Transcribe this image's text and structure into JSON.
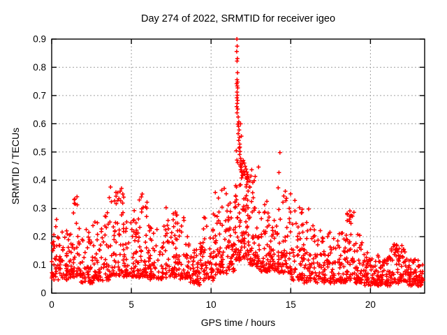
{
  "window": {
    "background": "#ffffff"
  },
  "chart_data": {
    "type": "scatter",
    "title": "Day 274 of 2022, SRMTID for receiver igeo",
    "xlabel": "GPS time / hours",
    "ylabel": "SRMTID / TECUs",
    "xlim": [
      0,
      23.4
    ],
    "ylim": [
      0,
      0.9
    ],
    "xtick_values": [
      0,
      5,
      10,
      15,
      20
    ],
    "xtick_labels": [
      "0",
      "5",
      "10",
      "15",
      "20"
    ],
    "ytick_values": [
      0,
      0.1,
      0.2,
      0.3,
      0.4,
      0.5,
      0.6,
      0.7,
      0.8,
      0.9
    ],
    "ytick_labels": [
      "0",
      "0.1",
      "0.2",
      "0.3",
      "0.4",
      "0.5",
      "0.6",
      "0.7",
      "0.8",
      "0.9"
    ],
    "grid": true,
    "grid_color": "#a0a0a0",
    "border_color": "#000000",
    "marker": "+",
    "marker_color": "#ff0000",
    "series_name": "SRMTID",
    "notable_points": [
      [
        11.62,
        0.9
      ],
      [
        11.64,
        0.875
      ],
      [
        11.61,
        0.856
      ],
      [
        11.65,
        0.831
      ],
      [
        11.63,
        0.822
      ],
      [
        11.66,
        0.781
      ],
      [
        11.63,
        0.756
      ],
      [
        11.66,
        0.748
      ],
      [
        11.61,
        0.742
      ],
      [
        11.64,
        0.734
      ],
      [
        11.67,
        0.727
      ],
      [
        11.63,
        0.712
      ],
      [
        11.65,
        0.701
      ],
      [
        11.62,
        0.692
      ],
      [
        11.66,
        0.683
      ],
      [
        11.64,
        0.672
      ],
      [
        11.61,
        0.661
      ],
      [
        11.67,
        0.652
      ],
      [
        11.63,
        0.639
      ],
      [
        11.7,
        0.624
      ],
      [
        11.74,
        0.607
      ],
      [
        11.68,
        0.599
      ],
      [
        11.72,
        0.591
      ],
      [
        11.76,
        0.578
      ],
      [
        11.7,
        0.565
      ],
      [
        11.78,
        0.552
      ],
      [
        11.73,
        0.541
      ],
      [
        11.8,
        0.528
      ],
      [
        11.76,
        0.514
      ],
      [
        11.82,
        0.502
      ],
      [
        11.79,
        0.491
      ],
      [
        11.85,
        0.478
      ],
      [
        11.88,
        0.468
      ],
      [
        11.83,
        0.456
      ],
      [
        11.9,
        0.446
      ],
      [
        11.86,
        0.437
      ],
      [
        11.93,
        0.428
      ],
      [
        11.97,
        0.417
      ],
      [
        11.91,
        0.408
      ],
      [
        12.02,
        0.47
      ],
      [
        12.08,
        0.461
      ],
      [
        12.14,
        0.449
      ],
      [
        12.2,
        0.439
      ],
      [
        12.05,
        0.431
      ],
      [
        12.12,
        0.421
      ],
      [
        12.26,
        0.404
      ],
      [
        12.31,
        0.394
      ],
      [
        12.22,
        0.384
      ],
      [
        12.36,
        0.409
      ],
      [
        12.43,
        0.397
      ],
      [
        12.55,
        0.437
      ],
      [
        12.5,
        0.415
      ],
      [
        12.62,
        0.392
      ],
      [
        14.32,
        0.498
      ],
      [
        14.26,
        0.427
      ],
      [
        14.21,
        0.373
      ],
      [
        14.66,
        0.361
      ],
      [
        14.56,
        0.344
      ],
      [
        14.73,
        0.336
      ],
      [
        10.83,
        0.371
      ],
      [
        10.46,
        0.337
      ],
      [
        10.95,
        0.352
      ],
      [
        4.38,
        0.371
      ],
      [
        4.3,
        0.361
      ],
      [
        4.46,
        0.351
      ],
      [
        4.52,
        0.34
      ],
      [
        5.68,
        0.351
      ],
      [
        5.62,
        0.341
      ],
      [
        1.45,
        0.333
      ],
      [
        1.42,
        0.318
      ],
      [
        3.95,
        0.327
      ],
      [
        15.26,
        0.328
      ],
      [
        16.12,
        0.298
      ],
      [
        18.71,
        0.291
      ],
      [
        18.73,
        0.272
      ],
      [
        18.69,
        0.254
      ],
      [
        21.65,
        0.168
      ],
      [
        21.8,
        0.158
      ]
    ],
    "cloud_model": {
      "seed": 20220274,
      "segments": [
        [
          0.0,
          0.5,
          40,
          0.05,
          0.27,
          2.2
        ],
        [
          0.5,
          1.2,
          48,
          0.05,
          0.22,
          2.0
        ],
        [
          1.2,
          1.8,
          45,
          0.06,
          0.34,
          2.4
        ],
        [
          1.8,
          2.6,
          55,
          0.04,
          0.25,
          2.2
        ],
        [
          2.6,
          3.6,
          68,
          0.05,
          0.28,
          2.3
        ],
        [
          3.6,
          4.6,
          72,
          0.06,
          0.375,
          2.3
        ],
        [
          4.6,
          5.4,
          56,
          0.06,
          0.3,
          2.3
        ],
        [
          5.4,
          6.0,
          46,
          0.06,
          0.35,
          2.4
        ],
        [
          6.0,
          7.0,
          66,
          0.05,
          0.26,
          2.2
        ],
        [
          7.0,
          8.0,
          66,
          0.06,
          0.3,
          2.3
        ],
        [
          8.0,
          8.7,
          46,
          0.05,
          0.28,
          2.3
        ],
        [
          8.7,
          9.5,
          56,
          0.035,
          0.18,
          1.8
        ],
        [
          9.5,
          10.2,
          50,
          0.05,
          0.28,
          2.2
        ],
        [
          10.2,
          11.0,
          56,
          0.07,
          0.37,
          2.4
        ],
        [
          11.0,
          11.5,
          42,
          0.08,
          0.33,
          2.2
        ],
        [
          11.5,
          11.9,
          46,
          0.12,
          0.62,
          2.0
        ],
        [
          11.9,
          12.4,
          52,
          0.12,
          0.5,
          2.0
        ],
        [
          12.4,
          13.0,
          52,
          0.1,
          0.45,
          2.2
        ],
        [
          13.0,
          13.6,
          46,
          0.08,
          0.33,
          2.2
        ],
        [
          13.6,
          14.2,
          46,
          0.08,
          0.3,
          2.2
        ],
        [
          14.2,
          15.0,
          56,
          0.07,
          0.36,
          2.3
        ],
        [
          15.0,
          15.8,
          56,
          0.05,
          0.3,
          2.4
        ],
        [
          15.8,
          16.5,
          50,
          0.04,
          0.26,
          2.3
        ],
        [
          16.5,
          17.5,
          66,
          0.04,
          0.22,
          2.3
        ],
        [
          17.5,
          18.5,
          66,
          0.04,
          0.22,
          2.3
        ],
        [
          18.5,
          19.0,
          40,
          0.05,
          0.3,
          2.5
        ],
        [
          19.0,
          19.5,
          36,
          0.04,
          0.22,
          2.4
        ],
        [
          19.5,
          20.5,
          72,
          0.03,
          0.14,
          1.8
        ],
        [
          20.5,
          21.3,
          60,
          0.03,
          0.13,
          1.8
        ],
        [
          21.3,
          22.2,
          66,
          0.04,
          0.17,
          1.9
        ],
        [
          22.2,
          23.3,
          82,
          0.03,
          0.13,
          1.8
        ]
      ]
    }
  }
}
